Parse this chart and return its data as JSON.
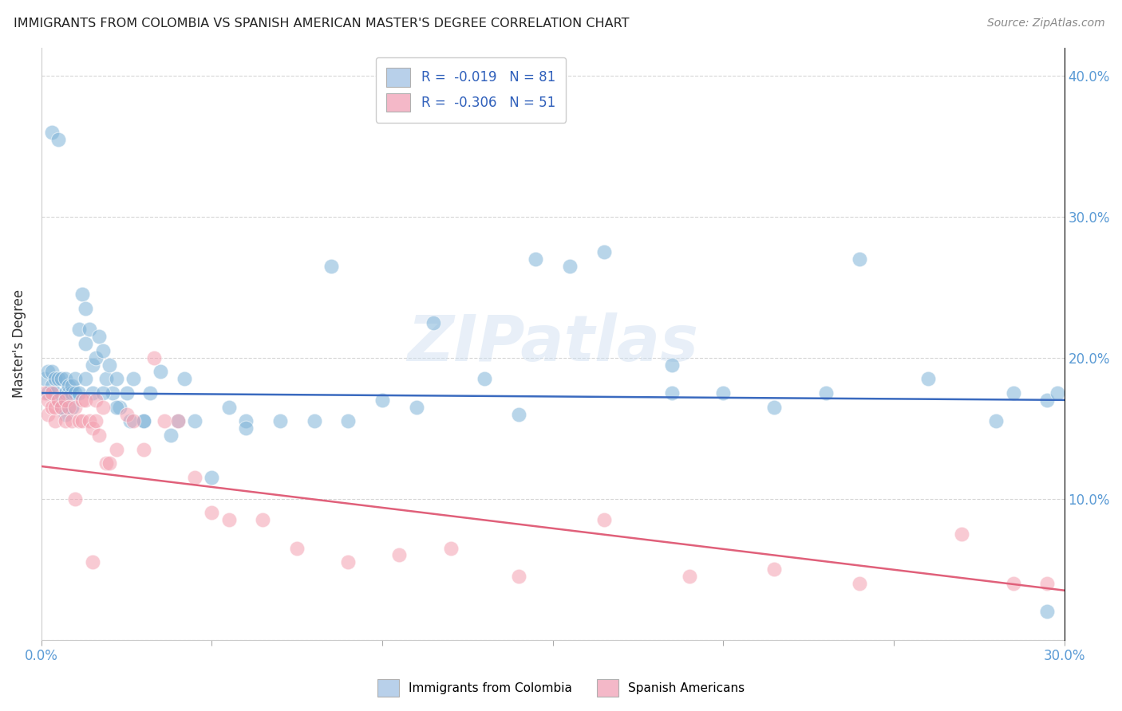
{
  "title": "IMMIGRANTS FROM COLOMBIA VS SPANISH AMERICAN MASTER'S DEGREE CORRELATION CHART",
  "source": "Source: ZipAtlas.com",
  "ylabel": "Master's Degree",
  "xmin": 0.0,
  "xmax": 0.3,
  "ymin": 0.0,
  "ymax": 0.42,
  "watermark": "ZIPatlas",
  "legend_blue_label": "R =  -0.019   N = 81",
  "legend_pink_label": "R =  -0.306   N = 51",
  "legend_blue_color": "#b8d0ea",
  "legend_pink_color": "#f4b8c8",
  "blue_scatter_color": "#7fb3d8",
  "pink_scatter_color": "#f4a0b0",
  "blue_line_color": "#3a6abf",
  "pink_line_color": "#e0607a",
  "blue_line_y0": 0.175,
  "blue_line_y1": 0.17,
  "pink_line_y0": 0.123,
  "pink_line_y1": 0.035,
  "blue_points_x": [
    0.001,
    0.002,
    0.002,
    0.003,
    0.003,
    0.004,
    0.004,
    0.005,
    0.005,
    0.006,
    0.006,
    0.007,
    0.007,
    0.008,
    0.008,
    0.009,
    0.009,
    0.01,
    0.01,
    0.011,
    0.012,
    0.013,
    0.013,
    0.014,
    0.015,
    0.016,
    0.017,
    0.018,
    0.019,
    0.02,
    0.021,
    0.022,
    0.023,
    0.025,
    0.027,
    0.03,
    0.032,
    0.035,
    0.038,
    0.042,
    0.045,
    0.05,
    0.055,
    0.06,
    0.07,
    0.085,
    0.09,
    0.1,
    0.115,
    0.13,
    0.145,
    0.155,
    0.165,
    0.185,
    0.2,
    0.215,
    0.24,
    0.26,
    0.28,
    0.295,
    0.298,
    0.003,
    0.005,
    0.007,
    0.009,
    0.011,
    0.013,
    0.015,
    0.018,
    0.022,
    0.026,
    0.03,
    0.04,
    0.06,
    0.08,
    0.11,
    0.14,
    0.185,
    0.23,
    0.285,
    0.295
  ],
  "blue_points_y": [
    0.185,
    0.175,
    0.19,
    0.18,
    0.19,
    0.175,
    0.185,
    0.17,
    0.185,
    0.165,
    0.185,
    0.175,
    0.185,
    0.175,
    0.18,
    0.175,
    0.18,
    0.185,
    0.175,
    0.22,
    0.245,
    0.21,
    0.235,
    0.22,
    0.195,
    0.2,
    0.215,
    0.205,
    0.185,
    0.195,
    0.175,
    0.185,
    0.165,
    0.175,
    0.185,
    0.155,
    0.175,
    0.19,
    0.145,
    0.185,
    0.155,
    0.115,
    0.165,
    0.155,
    0.155,
    0.265,
    0.155,
    0.17,
    0.225,
    0.185,
    0.27,
    0.265,
    0.275,
    0.195,
    0.175,
    0.165,
    0.27,
    0.185,
    0.155,
    0.17,
    0.175,
    0.36,
    0.355,
    0.16,
    0.165,
    0.175,
    0.185,
    0.175,
    0.175,
    0.165,
    0.155,
    0.155,
    0.155,
    0.15,
    0.155,
    0.165,
    0.16,
    0.175,
    0.175,
    0.175,
    0.02
  ],
  "pink_points_x": [
    0.001,
    0.002,
    0.002,
    0.003,
    0.003,
    0.004,
    0.004,
    0.005,
    0.006,
    0.007,
    0.007,
    0.008,
    0.009,
    0.01,
    0.011,
    0.012,
    0.012,
    0.013,
    0.014,
    0.015,
    0.016,
    0.016,
    0.017,
    0.018,
    0.019,
    0.02,
    0.022,
    0.025,
    0.027,
    0.03,
    0.033,
    0.036,
    0.04,
    0.045,
    0.05,
    0.055,
    0.065,
    0.075,
    0.09,
    0.105,
    0.12,
    0.14,
    0.165,
    0.19,
    0.215,
    0.24,
    0.27,
    0.285,
    0.295,
    0.01,
    0.015
  ],
  "pink_points_y": [
    0.175,
    0.17,
    0.16,
    0.165,
    0.175,
    0.155,
    0.165,
    0.17,
    0.165,
    0.17,
    0.155,
    0.165,
    0.155,
    0.165,
    0.155,
    0.17,
    0.155,
    0.17,
    0.155,
    0.15,
    0.17,
    0.155,
    0.145,
    0.165,
    0.125,
    0.125,
    0.135,
    0.16,
    0.155,
    0.135,
    0.2,
    0.155,
    0.155,
    0.115,
    0.09,
    0.085,
    0.085,
    0.065,
    0.055,
    0.06,
    0.065,
    0.045,
    0.085,
    0.045,
    0.05,
    0.04,
    0.075,
    0.04,
    0.04,
    0.1,
    0.055
  ]
}
